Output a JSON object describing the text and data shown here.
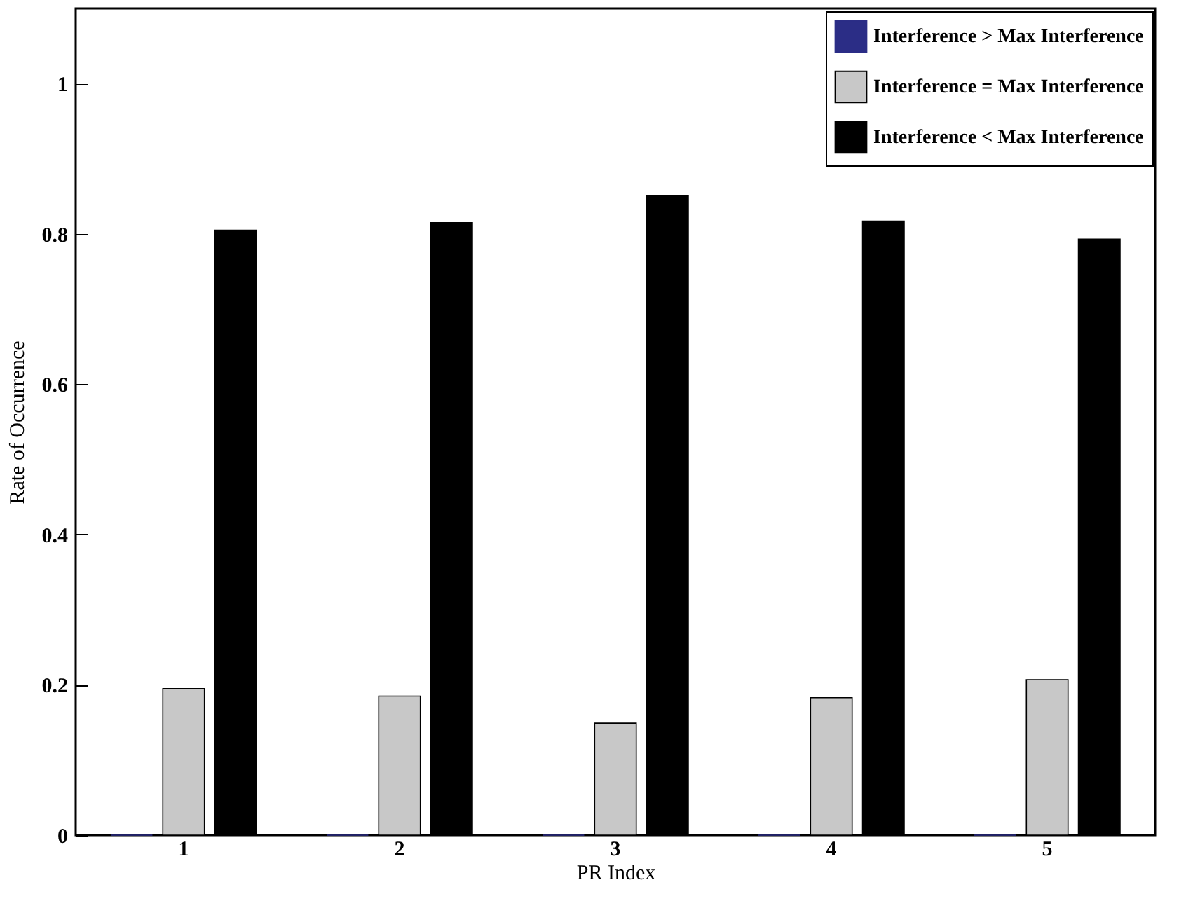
{
  "chart_data": {
    "type": "bar",
    "xlabel": "PR Index",
    "ylabel": "Rate of Occurrence",
    "categories": [
      "1",
      "2",
      "3",
      "4",
      "5"
    ],
    "series": [
      {
        "name": "Interference > Max Interference",
        "color": "#2b2d86",
        "values": [
          0,
          0,
          0,
          0,
          0
        ]
      },
      {
        "name": "Interference = Max Interference",
        "color": "#c8c8c8",
        "values": [
          0.195,
          0.185,
          0.149,
          0.183,
          0.207
        ]
      },
      {
        "name": "Interference < Max Interference",
        "color": "#000000",
        "values": [
          0.805,
          0.815,
          0.851,
          0.817,
          0.793
        ]
      }
    ],
    "ylim": [
      0,
      1.1
    ],
    "yticks": [
      0,
      0.2,
      0.4,
      0.6,
      0.8,
      1
    ],
    "grid": false,
    "legend": "top right"
  }
}
